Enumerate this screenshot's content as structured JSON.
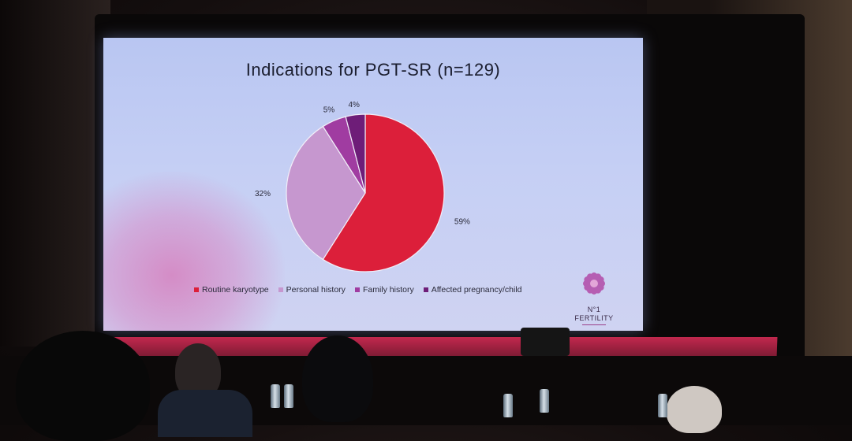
{
  "slide": {
    "title": "Indications for PGT-SR (n=129)",
    "logo": {
      "line1": "N°1",
      "line2": "FERTILITY"
    }
  },
  "chart_data": {
    "type": "pie",
    "title": "Indications for PGT-SR (n=129)",
    "slices": [
      {
        "label": "Routine karyotype",
        "value": 59,
        "value_label": "59%",
        "color": "#dc1f3a"
      },
      {
        "label": "Personal history",
        "value": 32,
        "value_label": "32%",
        "color": "#c697cf"
      },
      {
        "label": "Family history",
        "value": 5,
        "value_label": "5%",
        "color": "#a03ca1"
      },
      {
        "label": "Affected pregnancy/child",
        "value": 4,
        "value_label": "4%",
        "color": "#6e1d78"
      }
    ],
    "legend_position": "bottom"
  }
}
